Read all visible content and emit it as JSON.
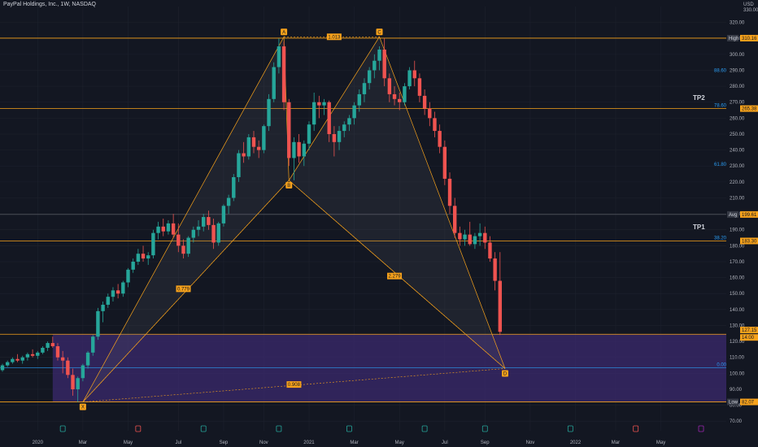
{
  "header": {
    "title": "PayPal Holdings, Inc., 1W, NASDAQ"
  },
  "axis": {
    "currency": "USD",
    "top_partial": "330.00"
  },
  "colors": {
    "up": "#26a69a",
    "down": "#ef5350",
    "pattern": "#f7a21b",
    "zone": "#3b2a6e",
    "bg": "#131722",
    "grid": "#1e222d"
  },
  "chart_data": {
    "type": "candlestick",
    "title": "PayPal Holdings, Inc., 1W, NASDAQ",
    "ylim": [
      64,
      330
    ],
    "y_ticks": [
      70,
      80,
      90,
      100,
      110,
      120,
      130,
      140,
      150,
      160,
      170,
      180,
      190,
      200,
      210,
      220,
      230,
      240,
      250,
      260,
      270,
      280,
      290,
      300,
      310,
      320
    ],
    "x_ticks": [
      {
        "label": "2020",
        "week": 7
      },
      {
        "label": "Mar",
        "week": 16
      },
      {
        "label": "May",
        "week": 25
      },
      {
        "label": "Jul",
        "week": 35
      },
      {
        "label": "Sep",
        "week": 44
      },
      {
        "label": "Nov",
        "week": 52
      },
      {
        "label": "2021",
        "week": 61
      },
      {
        "label": "Mar",
        "week": 70
      },
      {
        "label": "May",
        "week": 79
      },
      {
        "label": "Jul",
        "week": 88
      },
      {
        "label": "Sep",
        "week": 96
      },
      {
        "label": "Nov",
        "week": 105
      },
      {
        "label": "2022",
        "week": 114
      },
      {
        "label": "Mar",
        "week": 122
      },
      {
        "label": "May",
        "week": 131
      }
    ],
    "candles": [
      [
        102,
        106,
        101,
        105
      ],
      [
        105,
        108,
        104,
        107
      ],
      [
        107,
        110,
        106,
        109
      ],
      [
        109,
        112,
        107,
        108
      ],
      [
        108,
        111,
        106,
        110
      ],
      [
        110,
        113,
        108,
        112
      ],
      [
        112,
        115,
        110,
        111
      ],
      [
        111,
        114,
        109,
        113
      ],
      [
        113,
        117,
        112,
        116
      ],
      [
        116,
        120,
        114,
        119
      ],
      [
        119,
        123,
        116,
        117
      ],
      [
        117,
        119,
        108,
        110
      ],
      [
        110,
        114,
        100,
        108
      ],
      [
        108,
        110,
        97,
        99
      ],
      [
        99,
        103,
        86,
        90
      ],
      [
        90,
        98,
        82,
        97
      ],
      [
        97,
        106,
        95,
        105
      ],
      [
        105,
        114,
        103,
        113
      ],
      [
        113,
        124,
        111,
        123
      ],
      [
        123,
        141,
        121,
        139
      ],
      [
        139,
        145,
        132,
        143
      ],
      [
        143,
        150,
        141,
        148
      ],
      [
        148,
        154,
        145,
        152
      ],
      [
        152,
        156,
        147,
        150
      ],
      [
        150,
        158,
        148,
        157
      ],
      [
        157,
        166,
        154,
        165
      ],
      [
        165,
        172,
        163,
        170
      ],
      [
        170,
        178,
        168,
        175
      ],
      [
        175,
        180,
        170,
        172
      ],
      [
        172,
        176,
        168,
        174
      ],
      [
        174,
        190,
        172,
        188
      ],
      [
        188,
        195,
        184,
        192
      ],
      [
        192,
        197,
        186,
        189
      ],
      [
        189,
        196,
        187,
        194
      ],
      [
        194,
        200,
        185,
        187
      ],
      [
        187,
        194,
        176,
        180
      ],
      [
        180,
        184,
        172,
        175
      ],
      [
        175,
        186,
        173,
        185
      ],
      [
        185,
        192,
        182,
        190
      ],
      [
        190,
        196,
        186,
        192
      ],
      [
        192,
        200,
        189,
        198
      ],
      [
        198,
        202,
        190,
        193
      ],
      [
        193,
        197,
        178,
        182
      ],
      [
        182,
        195,
        180,
        194
      ],
      [
        194,
        206,
        192,
        205
      ],
      [
        205,
        212,
        200,
        210
      ],
      [
        210,
        225,
        208,
        223
      ],
      [
        223,
        240,
        220,
        238
      ],
      [
        238,
        245,
        232,
        236
      ],
      [
        236,
        250,
        234,
        248
      ],
      [
        248,
        252,
        238,
        242
      ],
      [
        242,
        246,
        235,
        240
      ],
      [
        240,
        256,
        238,
        255
      ],
      [
        255,
        275,
        252,
        272
      ],
      [
        272,
        295,
        270,
        292
      ],
      [
        292,
        310,
        288,
        305
      ],
      [
        305,
        308,
        265,
        270
      ],
      [
        270,
        272,
        230,
        235
      ],
      [
        235,
        248,
        221,
        245
      ],
      [
        245,
        250,
        232,
        236
      ],
      [
        236,
        246,
        230,
        244
      ],
      [
        244,
        258,
        240,
        256
      ],
      [
        256,
        276,
        252,
        270
      ],
      [
        270,
        274,
        260,
        268
      ],
      [
        268,
        272,
        262,
        270
      ],
      [
        270,
        271,
        245,
        250
      ],
      [
        250,
        255,
        236,
        245
      ],
      [
        245,
        255,
        240,
        252
      ],
      [
        252,
        258,
        248,
        256
      ],
      [
        256,
        262,
        252,
        260
      ],
      [
        260,
        270,
        256,
        268
      ],
      [
        268,
        278,
        264,
        275
      ],
      [
        275,
        285,
        270,
        282
      ],
      [
        282,
        292,
        278,
        290
      ],
      [
        290,
        300,
        285,
        296
      ],
      [
        296,
        305,
        290,
        303
      ],
      [
        303,
        310,
        280,
        285
      ],
      [
        285,
        288,
        270,
        275
      ],
      [
        275,
        280,
        268,
        272
      ],
      [
        272,
        276,
        265,
        270
      ],
      [
        270,
        282,
        268,
        280
      ],
      [
        280,
        292,
        278,
        290
      ],
      [
        290,
        296,
        280,
        285
      ],
      [
        285,
        288,
        270,
        274
      ],
      [
        274,
        278,
        262,
        266
      ],
      [
        266,
        270,
        255,
        260
      ],
      [
        260,
        264,
        248,
        252
      ],
      [
        252,
        256,
        238,
        242
      ],
      [
        242,
        246,
        218,
        222
      ],
      [
        222,
        226,
        200,
        205
      ],
      [
        205,
        210,
        185,
        188
      ],
      [
        188,
        192,
        180,
        184
      ],
      [
        184,
        190,
        180,
        187
      ],
      [
        187,
        195,
        180,
        181
      ],
      [
        181,
        188,
        178,
        186
      ],
      [
        186,
        194,
        180,
        188
      ],
      [
        188,
        192,
        178,
        182
      ],
      [
        182,
        186,
        170,
        172
      ],
      [
        172,
        176,
        152,
        158
      ],
      [
        158,
        176,
        124,
        126
      ]
    ],
    "candle_start_week": 0,
    "levels": [
      {
        "label": "High",
        "value": 310.16
      },
      {
        "label": "78.60",
        "value": 266
      },
      {
        "label": "Avg",
        "value": 199.61
      },
      {
        "label": "38.20",
        "value": 183
      },
      {
        "label": "14.00",
        "value": 124.5
      },
      {
        "label": "0.00",
        "value": 103.5
      },
      {
        "label": "Low",
        "value": 82.07
      }
    ],
    "price_tags": [
      {
        "label": "310.16",
        "value": 310.16
      },
      {
        "label": "265.38",
        "value": 266
      },
      {
        "label": "199.61",
        "value": 199.61
      },
      {
        "label": "183.30",
        "value": 183
      },
      {
        "label": "127.15",
        "value": 127.15
      },
      {
        "label": "14:00",
        "value": 122.5
      },
      {
        "label": "82.07",
        "value": 82.07
      }
    ],
    "fib_labels": [
      {
        "label": "88.60",
        "value": 288
      },
      {
        "label": "78.60",
        "value": 266
      },
      {
        "label": "61.80",
        "value": 229
      },
      {
        "label": "38.20",
        "value": 183
      },
      {
        "label": "0.00",
        "value": 103.5
      }
    ],
    "pattern_points": [
      {
        "label": "A",
        "week": 56,
        "value": 311
      },
      {
        "label": "B",
        "week": 57,
        "value": 221
      },
      {
        "label": "C",
        "week": 75,
        "value": 311
      },
      {
        "label": "D",
        "week": 100,
        "value": 103
      },
      {
        "label": "X",
        "week": 16,
        "value": 82
      }
    ],
    "pattern_ratios": [
      {
        "label": "1.013",
        "week": 66,
        "value": 311
      },
      {
        "label": "0.779",
        "week": 36,
        "value": 153
      },
      {
        "label": "2.279",
        "week": 78,
        "value": 161
      },
      {
        "label": "0.908",
        "week": 58,
        "value": 93
      }
    ],
    "targets": [
      {
        "label": "TP2",
        "value": 273
      },
      {
        "label": "TP1",
        "value": 192
      }
    ],
    "zone": {
      "top": 124.5,
      "bottom": 82.07,
      "start_week": 10
    }
  }
}
